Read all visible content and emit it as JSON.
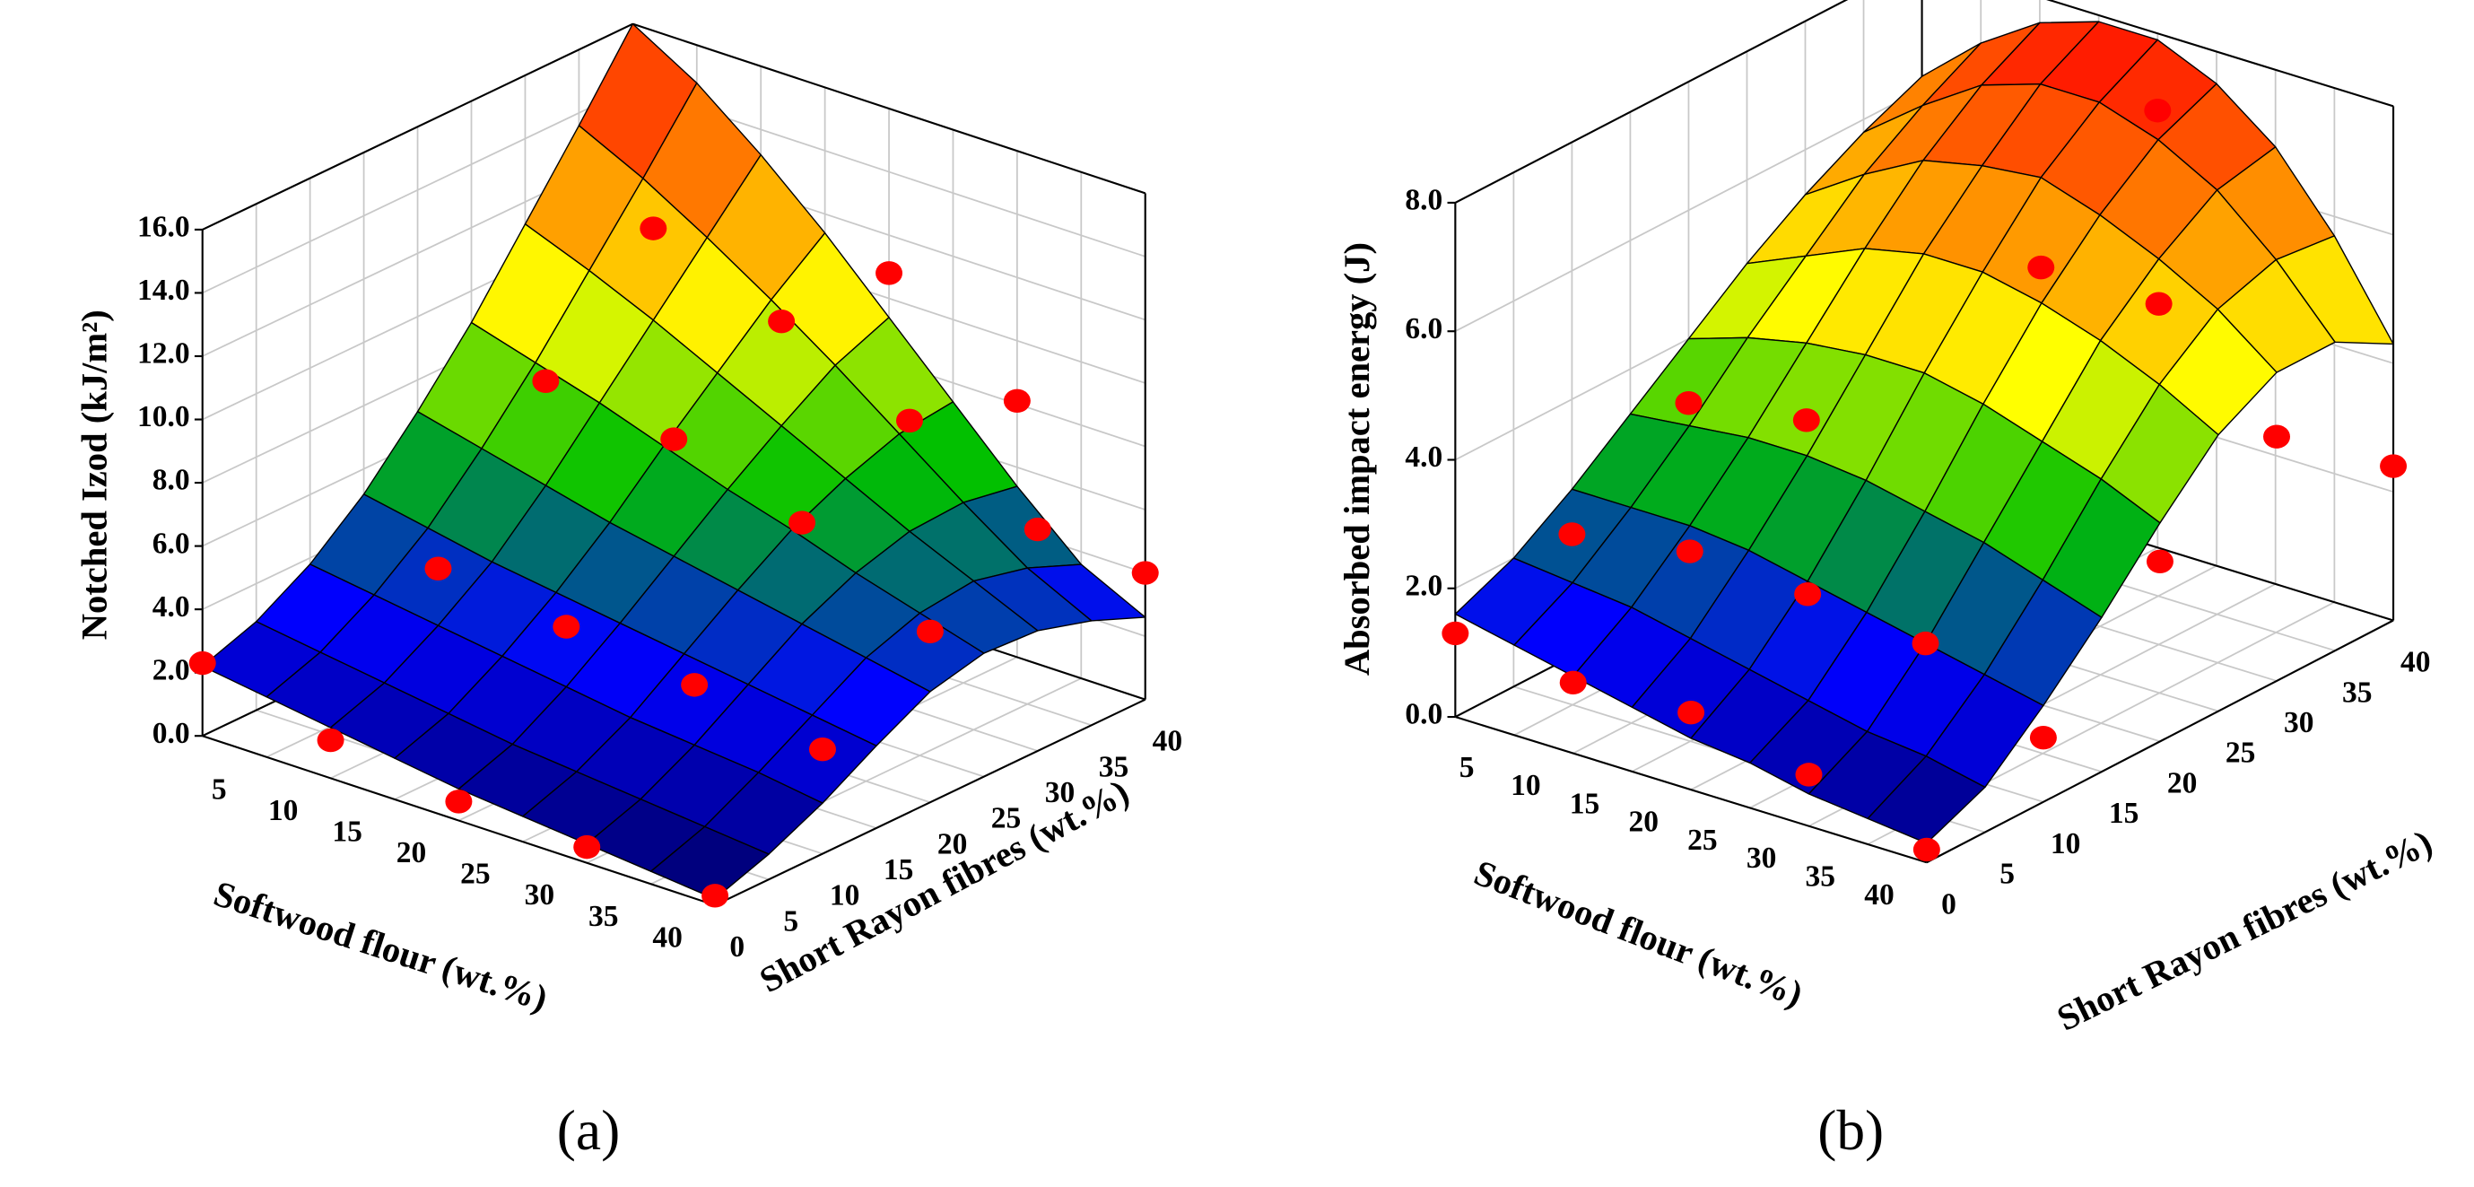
{
  "charts": [
    {
      "type": "surface",
      "label": "(a)",
      "xlabel": "Softwood flour (wt.%)",
      "ylabel": "Short Rayon fibres (wt.%)",
      "zlabel": "Notched Izod (kJ/m²)",
      "xlim": [
        0,
        40
      ],
      "ylim": [
        0,
        40
      ],
      "zlim": [
        0,
        16
      ],
      "xticks": [
        5,
        10,
        15,
        20,
        25,
        30,
        35,
        40
      ],
      "yticks": [
        0,
        5,
        10,
        15,
        20,
        25,
        30,
        35,
        40
      ],
      "zticks": [
        {
          "value": 0,
          "label": "0.0"
        },
        {
          "value": 2,
          "label": "2.0"
        },
        {
          "value": 4,
          "label": "4.0"
        },
        {
          "value": 6,
          "label": "6.0"
        },
        {
          "value": 8,
          "label": "8.0"
        },
        {
          "value": 10,
          "label": "10.0"
        },
        {
          "value": 12,
          "label": "12.0"
        },
        {
          "value": 14,
          "label": "14.0"
        },
        {
          "value": 16,
          "label": "16.0"
        }
      ],
      "x": [
        0,
        5,
        10,
        15,
        20,
        25,
        30,
        35,
        40
      ],
      "y": [
        0,
        5,
        10,
        15,
        20,
        25,
        30,
        35,
        40
      ],
      "z": [
        [
          2.2,
          2.8,
          3.8,
          5.2,
          7.0,
          9.0,
          11.3,
          13.6,
          16.0
        ],
        [
          1.9,
          2.5,
          3.5,
          4.8,
          6.5,
          8.4,
          10.5,
          12.6,
          14.8
        ],
        [
          1.6,
          2.2,
          3.2,
          4.4,
          6.0,
          7.8,
          9.6,
          11.4,
          13.2
        ],
        [
          1.3,
          1.9,
          2.9,
          4.1,
          5.5,
          7.1,
          8.6,
          10.1,
          11.4
        ],
        [
          1.0,
          1.6,
          2.6,
          3.8,
          5.1,
          6.4,
          7.6,
          8.7,
          9.4
        ],
        [
          0.8,
          1.4,
          2.3,
          3.5,
          4.7,
          5.8,
          6.6,
          7.2,
          7.4
        ],
        [
          0.6,
          1.2,
          2.1,
          3.2,
          4.3,
          5.1,
          5.6,
          5.7,
          5.4
        ],
        [
          0.4,
          1.0,
          1.9,
          2.9,
          3.9,
          4.5,
          4.7,
          4.3,
          3.6
        ],
        [
          0.2,
          0.8,
          1.6,
          2.6,
          3.5,
          3.9,
          3.8,
          3.3,
          2.6
        ]
      ],
      "colormap": [
        "#000060",
        "#0000ff",
        "#00c000",
        "#ffff00",
        "#ff8000",
        "#ff0000"
      ],
      "point_color": "#ff0000",
      "points": {
        "x": [
          0,
          10,
          20,
          30,
          40,
          10,
          20,
          30,
          40,
          10,
          20,
          30,
          40,
          10,
          20,
          30,
          40,
          20,
          30,
          40
        ],
        "y": [
          0,
          0,
          0,
          0,
          0,
          10,
          10,
          10,
          10,
          20,
          20,
          20,
          20,
          30,
          30,
          30,
          30,
          40,
          40,
          40
        ],
        "z": [
          2.3,
          1.2,
          0.6,
          0.5,
          0.3,
          5.0,
          4.5,
          4.0,
          3.3,
          9.3,
          8.8,
          7.5,
          5.4,
          12.5,
          10.9,
          9.1,
          7.0,
          10.8,
          8.1,
          4.0
        ]
      }
    },
    {
      "type": "surface",
      "label": "(b)",
      "xlabel": "Softwood flour (wt.%)",
      "ylabel": "Short Rayon fibres (wt.%)",
      "zlabel": "Absorbed impact energy (J)",
      "xlim": [
        0,
        40
      ],
      "ylim": [
        0,
        40
      ],
      "zlim": [
        0,
        8
      ],
      "xticks": [
        5,
        10,
        15,
        20,
        25,
        30,
        35,
        40
      ],
      "yticks": [
        0,
        5,
        10,
        15,
        20,
        25,
        30,
        35,
        40
      ],
      "zticks": [
        {
          "value": 0,
          "label": "0.0"
        },
        {
          "value": 2,
          "label": "2.0"
        },
        {
          "value": 4,
          "label": "4.0"
        },
        {
          "value": 6,
          "label": "6.0"
        },
        {
          "value": 8,
          "label": "8.0"
        }
      ],
      "x": [
        0,
        5,
        10,
        15,
        20,
        25,
        30,
        35,
        40
      ],
      "y": [
        0,
        5,
        10,
        15,
        20,
        25,
        30,
        35,
        40
      ],
      "z": [
        [
          1.6,
          2.0,
          2.6,
          3.3,
          4.0,
          4.7,
          5.3,
          5.8,
          6.2
        ],
        [
          1.4,
          1.9,
          2.6,
          3.4,
          4.3,
          5.1,
          5.9,
          6.5,
          7.0
        ],
        [
          1.2,
          1.8,
          2.6,
          3.5,
          4.5,
          5.5,
          6.4,
          7.1,
          7.6
        ],
        [
          1.0,
          1.6,
          2.5,
          3.5,
          4.6,
          5.7,
          6.6,
          7.4,
          7.9
        ],
        [
          0.8,
          1.4,
          2.3,
          3.4,
          4.6,
          5.7,
          6.7,
          7.4,
          7.9
        ],
        [
          0.7,
          1.2,
          2.1,
          3.2,
          4.4,
          5.5,
          6.4,
          7.1,
          7.5
        ],
        [
          0.5,
          1.0,
          1.9,
          3.0,
          4.1,
          5.2,
          6.0,
          6.6,
          6.8
        ],
        [
          0.4,
          0.9,
          1.7,
          2.7,
          3.8,
          4.8,
          5.5,
          5.8,
          5.7
        ],
        [
          0.3,
          0.7,
          1.5,
          2.4,
          3.4,
          4.3,
          4.8,
          4.8,
          4.3
        ]
      ],
      "colormap": [
        "#000060",
        "#0000ff",
        "#00c000",
        "#ffff00",
        "#ff8000",
        "#ff0000"
      ],
      "point_color": "#ff0000",
      "points": {
        "x": [
          0,
          10,
          20,
          30,
          40,
          0,
          10,
          20,
          30,
          40,
          0,
          10,
          40,
          20,
          30,
          40,
          40,
          20
        ],
        "y": [
          0,
          0,
          0,
          0,
          0,
          10,
          10,
          10,
          10,
          10,
          20,
          20,
          20,
          30,
          30,
          30,
          40,
          40
        ],
        "z": [
          1.3,
          1.1,
          1.2,
          0.8,
          0.2,
          1.9,
          2.2,
          2.1,
          1.9,
          1.0,
          3.0,
          3.3,
          2.8,
          5.3,
          5.3,
          3.8,
          2.4,
          6.8
        ]
      }
    }
  ]
}
